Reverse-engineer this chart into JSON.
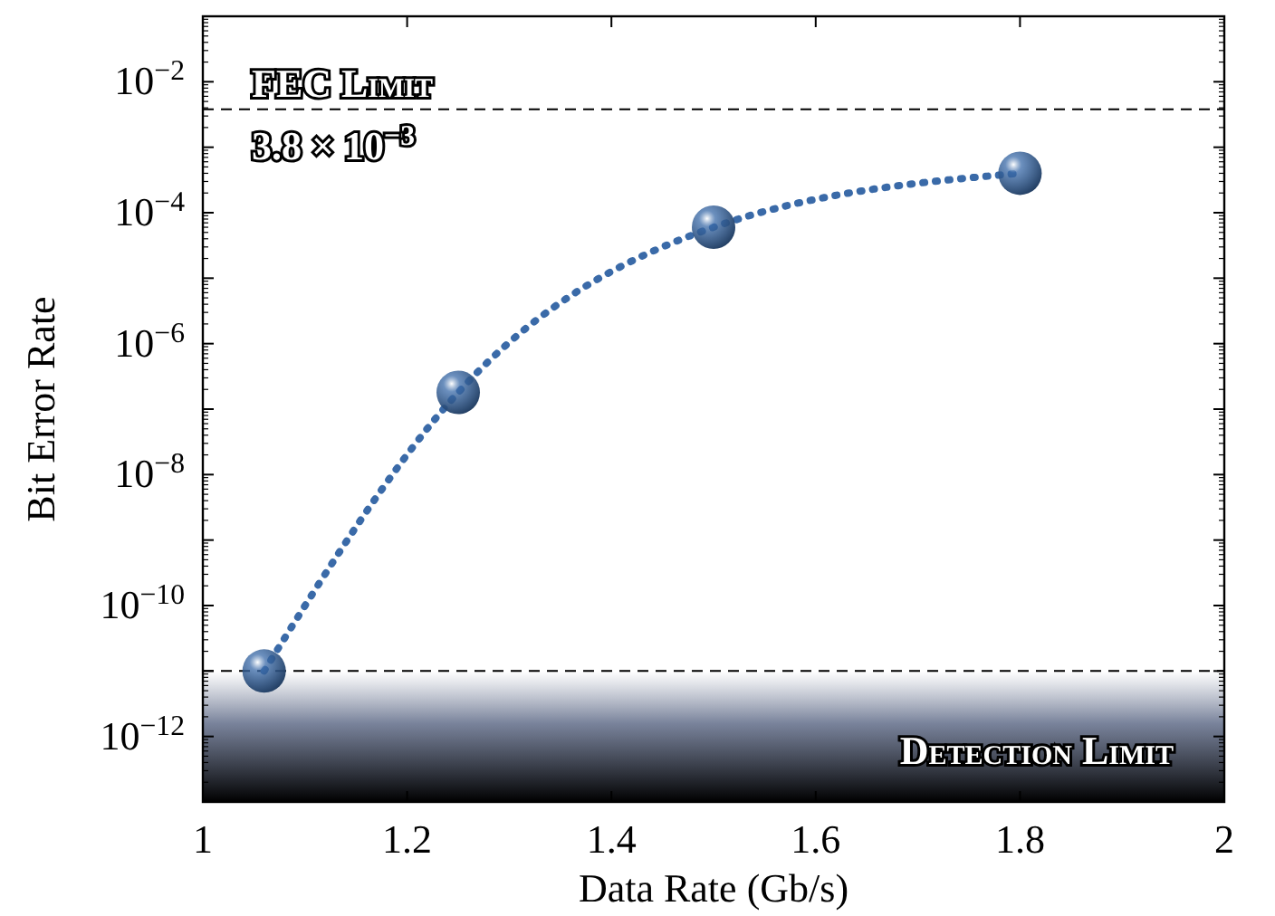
{
  "chart_data": {
    "type": "line",
    "xlabel": "Data Rate (Gb/s)",
    "ylabel": "Bit Error Rate",
    "log": "y",
    "x": [
      1.06,
      1.25,
      1.5,
      1.8
    ],
    "series": [
      {
        "color": "#3a6aa8",
        "values": [
          1e-11,
          1.8e-07,
          6e-05,
          0.0004
        ]
      }
    ],
    "marker": "circle",
    "line_style": "dotted",
    "grid": false,
    "xlim": [
      1,
      2
    ],
    "xticks": [
      1,
      1.2,
      1.4,
      1.6,
      1.8,
      2
    ],
    "ylim": [
      1e-13,
      0.1
    ],
    "yticks": [
      {
        "value": 1e-13,
        "label": null
      },
      {
        "value": 1e-12,
        "label": "10$^{−12}$"
      },
      {
        "value": 1e-11,
        "label": null
      },
      {
        "value": 1e-10,
        "label": "10$^{−10}$"
      },
      {
        "value": 1e-09,
        "label": null
      },
      {
        "value": 1e-08,
        "label": "10$^{−8}$"
      },
      {
        "value": 1e-07,
        "label": null
      },
      {
        "value": 1e-06,
        "label": "10$^{−6}$"
      },
      {
        "value": 1e-05,
        "label": null
      },
      {
        "value": 0.0001,
        "label": "10$^{−4}$"
      },
      {
        "value": 0.001,
        "label": null
      },
      {
        "value": 0.01,
        "label": "10$^{−2}$"
      },
      {
        "value": 0.1,
        "label": null
      }
    ],
    "ref_lines": [
      {
        "axis": "y",
        "value": 0.0038,
        "label": "FEC Limit",
        "line_style": "dashed",
        "color": "#000000"
      },
      {
        "axis": "y",
        "value": 1e-11,
        "line_style": "dashed",
        "color": "#000000"
      }
    ],
    "bands": [
      {
        "axis": "y",
        "from": 1e-13,
        "to": 1e-11,
        "label": "Detection Limit",
        "color": "#000000"
      }
    ],
    "annotations": [
      "3.8 × 10$^{−3}$"
    ]
  }
}
